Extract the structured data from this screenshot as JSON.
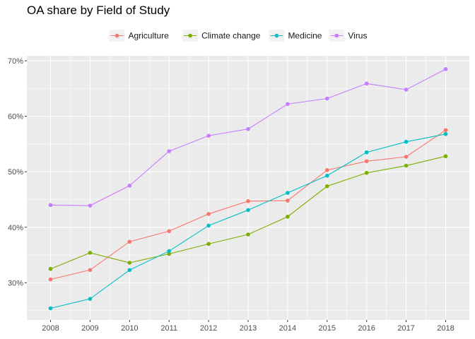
{
  "chart_data": {
    "type": "line",
    "title": "OA share by Field of Study",
    "xlabel": "",
    "ylabel": "",
    "x": [
      "2008",
      "2009",
      "2010",
      "2011",
      "2012",
      "2013",
      "2014",
      "2015",
      "2016",
      "2017",
      "2018"
    ],
    "xlim": [
      2007.4,
      2018.6
    ],
    "ylim": [
      23.3,
      70.9
    ],
    "yticks": [
      30,
      40,
      50,
      60,
      70
    ],
    "ytick_labels": [
      "30%",
      "40%",
      "50%",
      "60%",
      "70%"
    ],
    "grid": true,
    "legend_position": "top",
    "series": [
      {
        "name": "Agriculture",
        "color": "#F8766D",
        "values": [
          30.6,
          32.3,
          37.4,
          39.3,
          42.4,
          44.7,
          44.8,
          50.3,
          51.9,
          52.7,
          57.5
        ]
      },
      {
        "name": "Climate change",
        "color": "#7CAE00",
        "values": [
          32.5,
          35.4,
          33.6,
          35.2,
          37.0,
          38.7,
          41.9,
          47.4,
          49.8,
          51.1,
          52.8
        ]
      },
      {
        "name": "Medicine",
        "color": "#00BFC4",
        "values": [
          25.4,
          27.1,
          32.3,
          35.7,
          40.3,
          43.1,
          46.2,
          49.3,
          53.5,
          55.4,
          56.8
        ]
      },
      {
        "name": "Virus",
        "color": "#C77CFF",
        "values": [
          44.0,
          43.9,
          47.5,
          53.7,
          56.5,
          57.7,
          62.2,
          63.2,
          65.9,
          64.8,
          68.5
        ]
      }
    ],
    "colors": {
      "panel_background": "#EBEBEB",
      "grid_major": "#FFFFFF",
      "tick": "#333333",
      "legend_key_background": "#F2F2F2"
    }
  }
}
